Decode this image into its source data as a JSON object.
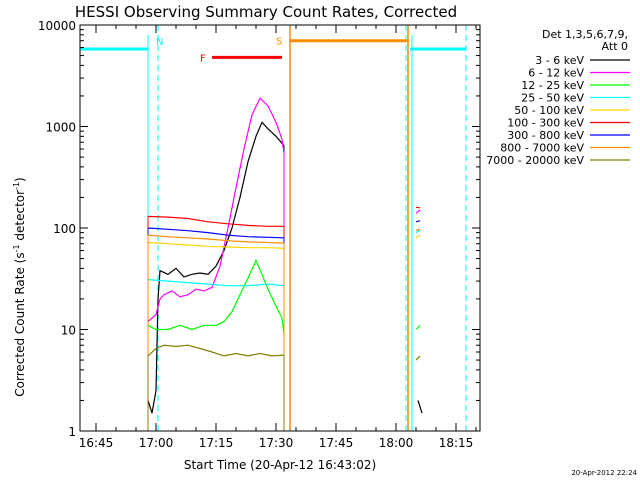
{
  "chart_data": {
    "type": "line",
    "title": "HESSI Observing Summary Count Rates, Corrected",
    "xlabel": "Start Time (20-Apr-12 16:43:02)",
    "ylabel_main": "Corrected Count Rate (s",
    "ylabel_sup1": "-1",
    "ylabel_mid": " detector",
    "ylabel_sup2": "-1",
    "ylabel_end": ")",
    "x_unit": "minutes after 16:43:02",
    "xlim": [
      -2.0,
      98.0
    ],
    "ylim": [
      1,
      10000
    ],
    "yscale": "log",
    "x_ticks": [
      {
        "x": 2.0,
        "label": "16:45"
      },
      {
        "x": 17.0,
        "label": "17:00"
      },
      {
        "x": 32.0,
        "label": "17:15"
      },
      {
        "x": 47.0,
        "label": "17:30"
      },
      {
        "x": 62.0,
        "label": "17:45"
      },
      {
        "x": 77.0,
        "label": "18:00"
      },
      {
        "x": 92.0,
        "label": "18:15"
      }
    ],
    "y_ticks": [
      {
        "y": 1,
        "label": "1"
      },
      {
        "y": 10,
        "label": "10"
      },
      {
        "y": 100,
        "label": "100"
      },
      {
        "y": 1000,
        "label": "1000"
      },
      {
        "y": 10000,
        "label": "10000"
      }
    ],
    "legend_header": [
      "Det 1,3,5,6,7,9,",
      "Att 0"
    ],
    "legend_position": "right",
    "series": [
      {
        "name": "3 - 6 keV",
        "color": "#000000",
        "segments": [
          [
            [
              15.0,
              2.0
            ],
            [
              16.0,
              1.5
            ],
            [
              17.0,
              2.5
            ],
            [
              17.5,
              20
            ],
            [
              18.0,
              38
            ],
            [
              20.0,
              35
            ],
            [
              22.0,
              40
            ],
            [
              24.0,
              33
            ],
            [
              26.0,
              35
            ],
            [
              28.0,
              36
            ],
            [
              30.0,
              35
            ],
            [
              32.0,
              42
            ],
            [
              34.0,
              60
            ],
            [
              36.0,
              100
            ],
            [
              38.0,
              200
            ],
            [
              40.0,
              450
            ],
            [
              42.0,
              800
            ],
            [
              43.5,
              1100
            ],
            [
              45.0,
              950
            ],
            [
              47.0,
              800
            ],
            [
              49.0,
              650
            ]
          ],
          [
            [
              82.5,
              2.0
            ],
            [
              83.5,
              1.5
            ]
          ]
        ]
      },
      {
        "name": "6 - 12 keV",
        "color": "#ff00ff",
        "segments": [
          [
            [
              15.0,
              12
            ],
            [
              17.0,
              14
            ],
            [
              18.0,
              20
            ],
            [
              19.0,
              22
            ],
            [
              21.0,
              24
            ],
            [
              23.0,
              21
            ],
            [
              25.0,
              22
            ],
            [
              27.0,
              25
            ],
            [
              29.0,
              24
            ],
            [
              31.0,
              26
            ],
            [
              33.0,
              42
            ],
            [
              35.0,
              100
            ],
            [
              37.0,
              250
            ],
            [
              39.0,
              600
            ],
            [
              41.0,
              1300
            ],
            [
              43.0,
              1900
            ],
            [
              45.0,
              1600
            ],
            [
              47.0,
              1100
            ],
            [
              48.5,
              750
            ],
            [
              49.0,
              550
            ]
          ],
          [
            [
              82.0,
              140
            ],
            [
              83.0,
              150
            ]
          ]
        ]
      },
      {
        "name": "12 - 25 keV",
        "color": "#00ff00",
        "segments": [
          [
            [
              15.0,
              11
            ],
            [
              17.0,
              10
            ],
            [
              20.0,
              10
            ],
            [
              23.0,
              11
            ],
            [
              26.0,
              10
            ],
            [
              29.0,
              11
            ],
            [
              32.0,
              11
            ],
            [
              34.0,
              12
            ],
            [
              36.0,
              15
            ],
            [
              38.0,
              22
            ],
            [
              40.0,
              32
            ],
            [
              42.0,
              48
            ],
            [
              43.5,
              35
            ],
            [
              45.0,
              25
            ],
            [
              47.0,
              17
            ],
            [
              48.5,
              13
            ],
            [
              49.0,
              9
            ]
          ],
          [
            [
              82.0,
              10
            ],
            [
              83.0,
              11
            ]
          ]
        ]
      },
      {
        "name": "25 - 50 keV",
        "color": "#00ffff",
        "segments": [
          [
            [
              15.0,
              31
            ],
            [
              20.0,
              30
            ],
            [
              25.0,
              29
            ],
            [
              30.0,
              28
            ],
            [
              35.0,
              27
            ],
            [
              40.0,
              27
            ],
            [
              45.0,
              28
            ],
            [
              49.0,
              27
            ]
          ],
          [
            [
              82.0,
              90
            ],
            [
              83.0,
              95
            ]
          ]
        ]
      },
      {
        "name": "50 - 100 keV",
        "color": "#ffd700",
        "segments": [
          [
            [
              15.0,
              72
            ],
            [
              20.0,
              70
            ],
            [
              25.0,
              68
            ],
            [
              30.0,
              66
            ],
            [
              35.0,
              65
            ],
            [
              40.0,
              64
            ],
            [
              45.0,
              64
            ],
            [
              49.0,
              63
            ]
          ],
          [
            [
              82.0,
              80
            ],
            [
              83.0,
              85
            ]
          ]
        ]
      },
      {
        "name": "100 - 300 keV",
        "color": "#ff0000",
        "segments": [
          [
            [
              15.0,
              130
            ],
            [
              20.0,
              128
            ],
            [
              25.0,
              124
            ],
            [
              30.0,
              115
            ],
            [
              35.0,
              110
            ],
            [
              40.0,
              106
            ],
            [
              45.0,
              104
            ],
            [
              49.0,
              104
            ]
          ],
          [
            [
              82.0,
              160
            ],
            [
              83.0,
              158
            ]
          ]
        ]
      },
      {
        "name": "300 - 800 keV",
        "color": "#0000ff",
        "segments": [
          [
            [
              15.0,
              100
            ],
            [
              20.0,
              97
            ],
            [
              25.0,
              94
            ],
            [
              30.0,
              90
            ],
            [
              35.0,
              85
            ],
            [
              40.0,
              82
            ],
            [
              45.0,
              81
            ],
            [
              49.0,
              80
            ]
          ],
          [
            [
              82.0,
              115
            ],
            [
              83.0,
              118
            ]
          ]
        ]
      },
      {
        "name": "800 - 7000 keV",
        "color": "#ff8c00",
        "segments": [
          [
            [
              15.0,
              85
            ],
            [
              20.0,
              82
            ],
            [
              25.0,
              80
            ],
            [
              30.0,
              78
            ],
            [
              35.0,
              75
            ],
            [
              40.0,
              73
            ],
            [
              45.0,
              72
            ],
            [
              49.0,
              71
            ]
          ],
          [
            [
              82.0,
              95
            ],
            [
              83.0,
              97
            ]
          ]
        ]
      },
      {
        "name": "7000 - 20000 keV",
        "color": "#808000",
        "segments": [
          [
            [
              15.0,
              5.5
            ],
            [
              17.0,
              6.5
            ],
            [
              19.0,
              7
            ],
            [
              22.0,
              6.8
            ],
            [
              25.0,
              7
            ],
            [
              28.0,
              6.5
            ],
            [
              31.0,
              6
            ],
            [
              34.0,
              5.5
            ],
            [
              37.0,
              5.8
            ],
            [
              40.0,
              5.5
            ],
            [
              43.0,
              5.8
            ],
            [
              46.0,
              5.5
            ],
            [
              49.0,
              5.6
            ]
          ],
          [
            [
              82.0,
              5
            ],
            [
              83.0,
              5.5
            ]
          ]
        ]
      }
    ],
    "markers": {
      "night_label": "N",
      "saa_label": "S",
      "flare_label": "F",
      "night_color": "#00ffff",
      "saa_color": "#ff8c00",
      "flare_color": "#ff0000",
      "night_bars": [
        [
          -2.0,
          15.0
        ],
        [
          80.5,
          94.5
        ]
      ],
      "night_bar_y": 5800,
      "saa_bar": [
        50.5,
        80.0
      ],
      "saa_bar_y": 7000,
      "flare_bar": [
        31.0,
        48.5
      ],
      "flare_bar_y": 4800,
      "night_boundaries": [
        -2.0,
        17.5,
        79.5,
        94.5
      ],
      "night_edges": [
        15.0,
        81.0
      ],
      "saa_edges": [
        50.5,
        80.0
      ]
    },
    "footer_timestamp": "20-Apr-2012 22:24"
  }
}
